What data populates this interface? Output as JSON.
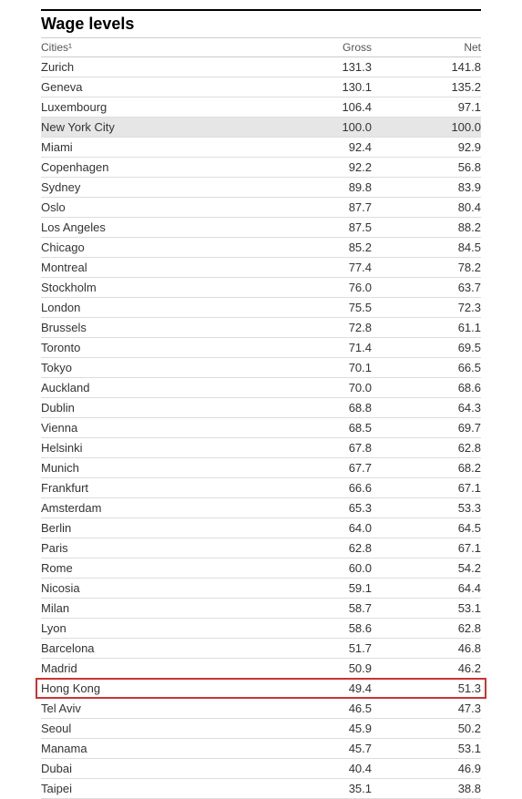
{
  "table": {
    "title": "Wage levels",
    "columns": {
      "city": "Cities¹",
      "gross": "Gross",
      "net": "Net"
    },
    "highlight_gray_color": "#e6e6e6",
    "highlight_red_border": "#cc3333",
    "background_color": "#ffffff",
    "border_color": "#dddddd",
    "text_color": "#333333",
    "title_fontsize": 18,
    "row_fontsize": 13,
    "header_fontsize": 12,
    "rows": [
      {
        "city": "Zurich",
        "gross": "131.3",
        "net": "141.8",
        "highlight": ""
      },
      {
        "city": "Geneva",
        "gross": "130.1",
        "net": "135.2",
        "highlight": ""
      },
      {
        "city": "Luxembourg",
        "gross": "106.4",
        "net": "97.1",
        "highlight": ""
      },
      {
        "city": "New York City",
        "gross": "100.0",
        "net": "100.0",
        "highlight": "gray"
      },
      {
        "city": "Miami",
        "gross": "92.4",
        "net": "92.9",
        "highlight": ""
      },
      {
        "city": "Copenhagen",
        "gross": "92.2",
        "net": "56.8",
        "highlight": ""
      },
      {
        "city": "Sydney",
        "gross": "89.8",
        "net": "83.9",
        "highlight": ""
      },
      {
        "city": "Oslo",
        "gross": "87.7",
        "net": "80.4",
        "highlight": ""
      },
      {
        "city": "Los Angeles",
        "gross": "87.5",
        "net": "88.2",
        "highlight": ""
      },
      {
        "city": "Chicago",
        "gross": "85.2",
        "net": "84.5",
        "highlight": ""
      },
      {
        "city": "Montreal",
        "gross": "77.4",
        "net": "78.2",
        "highlight": ""
      },
      {
        "city": "Stockholm",
        "gross": "76.0",
        "net": "63.7",
        "highlight": ""
      },
      {
        "city": "London",
        "gross": "75.5",
        "net": "72.3",
        "highlight": ""
      },
      {
        "city": "Brussels",
        "gross": "72.8",
        "net": "61.1",
        "highlight": ""
      },
      {
        "city": "Toronto",
        "gross": "71.4",
        "net": "69.5",
        "highlight": ""
      },
      {
        "city": "Tokyo",
        "gross": "70.1",
        "net": "66.5",
        "highlight": ""
      },
      {
        "city": "Auckland",
        "gross": "70.0",
        "net": "68.6",
        "highlight": ""
      },
      {
        "city": "Dublin",
        "gross": "68.8",
        "net": "64.3",
        "highlight": ""
      },
      {
        "city": "Vienna",
        "gross": "68.5",
        "net": "69.7",
        "highlight": ""
      },
      {
        "city": "Helsinki",
        "gross": "67.8",
        "net": "62.8",
        "highlight": ""
      },
      {
        "city": "Munich",
        "gross": "67.7",
        "net": "68.2",
        "highlight": ""
      },
      {
        "city": "Frankfurt",
        "gross": "66.6",
        "net": "67.1",
        "highlight": ""
      },
      {
        "city": "Amsterdam",
        "gross": "65.3",
        "net": "53.3",
        "highlight": ""
      },
      {
        "city": "Berlin",
        "gross": "64.0",
        "net": "64.5",
        "highlight": ""
      },
      {
        "city": "Paris",
        "gross": "62.8",
        "net": "67.1",
        "highlight": ""
      },
      {
        "city": "Rome",
        "gross": "60.0",
        "net": "54.2",
        "highlight": ""
      },
      {
        "city": "Nicosia",
        "gross": "59.1",
        "net": "64.4",
        "highlight": ""
      },
      {
        "city": "Milan",
        "gross": "58.7",
        "net": "53.1",
        "highlight": ""
      },
      {
        "city": "Lyon",
        "gross": "58.6",
        "net": "62.8",
        "highlight": ""
      },
      {
        "city": "Barcelona",
        "gross": "51.7",
        "net": "46.8",
        "highlight": ""
      },
      {
        "city": "Madrid",
        "gross": "50.9",
        "net": "46.2",
        "highlight": ""
      },
      {
        "city": "Hong Kong",
        "gross": "49.4",
        "net": "51.3",
        "highlight": "red"
      },
      {
        "city": "Tel Aviv",
        "gross": "46.5",
        "net": "47.3",
        "highlight": ""
      },
      {
        "city": "Seoul",
        "gross": "45.9",
        "net": "50.2",
        "highlight": ""
      },
      {
        "city": "Manama",
        "gross": "45.7",
        "net": "53.1",
        "highlight": ""
      },
      {
        "city": "Dubai",
        "gross": "40.4",
        "net": "46.9",
        "highlight": ""
      },
      {
        "city": "Taipei",
        "gross": "35.1",
        "net": "38.8",
        "highlight": ""
      }
    ]
  }
}
